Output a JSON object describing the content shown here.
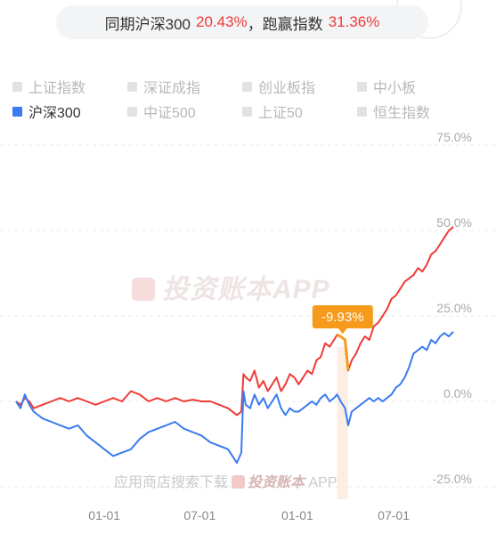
{
  "summary": {
    "prefix": "同期沪深300",
    "index_return": "20.43%",
    "separator": "，跑赢指数",
    "excess_return": "31.36%"
  },
  "legend": [
    {
      "label": "上证指数",
      "active": false
    },
    {
      "label": "深证成指",
      "active": false
    },
    {
      "label": "创业板指",
      "active": false
    },
    {
      "label": "中小板",
      "active": false
    },
    {
      "label": "沪深300",
      "active": true
    },
    {
      "label": "中证500",
      "active": false
    },
    {
      "label": "上证50",
      "active": false
    },
    {
      "label": "恒生指数",
      "active": false
    }
  ],
  "watermark": {
    "main": "投资账本APP",
    "footer_prefix": "应用商店搜索下载",
    "footer_brand": "投资账本",
    "footer_suffix": "APP"
  },
  "colors": {
    "portfolio": "#ef3b36",
    "index": "#3a7bf0",
    "drawdown": "#f59a1b"
  },
  "chart_data": {
    "type": "line",
    "y_unit": "%",
    "ylim": [
      -25,
      75
    ],
    "yticks": [
      75,
      50,
      25,
      0,
      -25
    ],
    "ytick_labels": [
      "75.0%",
      "50.0%",
      "25.0%",
      "0.0%",
      "-25.0%"
    ],
    "xticks": [
      {
        "label": "01-01",
        "pos": 0.2
      },
      {
        "label": "07-01",
        "pos": 0.416
      },
      {
        "label": "01-01",
        "pos": 0.637
      },
      {
        "label": "07-01",
        "pos": 0.855
      }
    ],
    "grid": true,
    "drawdown_label": "-9.93%",
    "drawdown_range": [
      0.727,
      0.752
    ],
    "series": [
      {
        "name": "",
        "color": "#ef3b36",
        "points": [
          [
            0,
            0
          ],
          [
            0.01,
            -1
          ],
          [
            0.02,
            1
          ],
          [
            0.03,
            0
          ],
          [
            0.04,
            -2
          ],
          [
            0.06,
            -1
          ],
          [
            0.08,
            0
          ],
          [
            0.1,
            1
          ],
          [
            0.12,
            0
          ],
          [
            0.14,
            1
          ],
          [
            0.16,
            0
          ],
          [
            0.18,
            -1
          ],
          [
            0.2,
            0
          ],
          [
            0.22,
            1
          ],
          [
            0.24,
            0
          ],
          [
            0.26,
            3
          ],
          [
            0.28,
            2
          ],
          [
            0.3,
            0
          ],
          [
            0.32,
            1
          ],
          [
            0.34,
            0
          ],
          [
            0.36,
            1
          ],
          [
            0.38,
            0
          ],
          [
            0.4,
            0.5
          ],
          [
            0.42,
            0
          ],
          [
            0.44,
            0
          ],
          [
            0.46,
            -1
          ],
          [
            0.48,
            -2
          ],
          [
            0.5,
            -4
          ],
          [
            0.51,
            -3
          ],
          [
            0.515,
            8
          ],
          [
            0.52,
            7
          ],
          [
            0.53,
            6
          ],
          [
            0.54,
            9
          ],
          [
            0.55,
            4
          ],
          [
            0.56,
            6
          ],
          [
            0.57,
            3
          ],
          [
            0.58,
            5
          ],
          [
            0.59,
            7
          ],
          [
            0.6,
            3
          ],
          [
            0.61,
            5
          ],
          [
            0.62,
            8
          ],
          [
            0.63,
            7
          ],
          [
            0.64,
            5
          ],
          [
            0.65,
            7
          ],
          [
            0.66,
            9
          ],
          [
            0.67,
            8
          ],
          [
            0.68,
            12
          ],
          [
            0.69,
            13
          ],
          [
            0.7,
            17
          ],
          [
            0.71,
            16
          ],
          [
            0.72,
            18
          ],
          [
            0.727,
            19.5
          ],
          [
            0.735,
            19
          ],
          [
            0.745,
            18
          ],
          [
            0.752,
            9
          ],
          [
            0.76,
            12
          ],
          [
            0.77,
            14
          ],
          [
            0.78,
            17
          ],
          [
            0.79,
            19
          ],
          [
            0.8,
            18
          ],
          [
            0.81,
            22
          ],
          [
            0.82,
            23
          ],
          [
            0.83,
            25
          ],
          [
            0.84,
            27
          ],
          [
            0.85,
            30
          ],
          [
            0.86,
            31
          ],
          [
            0.87,
            33
          ],
          [
            0.88,
            35
          ],
          [
            0.89,
            36
          ],
          [
            0.9,
            37
          ],
          [
            0.91,
            39
          ],
          [
            0.92,
            38
          ],
          [
            0.93,
            40
          ],
          [
            0.94,
            43
          ],
          [
            0.95,
            44
          ],
          [
            0.96,
            46
          ],
          [
            0.97,
            48
          ],
          [
            0.98,
            50
          ],
          [
            0.99,
            51
          ]
        ]
      },
      {
        "name": "沪深300",
        "color": "#3a7bf0",
        "points": [
          [
            0,
            0
          ],
          [
            0.01,
            -2
          ],
          [
            0.02,
            2
          ],
          [
            0.03,
            -1
          ],
          [
            0.04,
            -3
          ],
          [
            0.06,
            -5
          ],
          [
            0.08,
            -6
          ],
          [
            0.1,
            -7
          ],
          [
            0.12,
            -8
          ],
          [
            0.14,
            -7
          ],
          [
            0.16,
            -10
          ],
          [
            0.18,
            -12
          ],
          [
            0.2,
            -14
          ],
          [
            0.22,
            -16
          ],
          [
            0.24,
            -15
          ],
          [
            0.26,
            -14
          ],
          [
            0.28,
            -11
          ],
          [
            0.3,
            -9
          ],
          [
            0.32,
            -8
          ],
          [
            0.34,
            -7
          ],
          [
            0.36,
            -6
          ],
          [
            0.38,
            -8
          ],
          [
            0.4,
            -9
          ],
          [
            0.42,
            -10
          ],
          [
            0.44,
            -12
          ],
          [
            0.46,
            -13
          ],
          [
            0.48,
            -14
          ],
          [
            0.49,
            -16
          ],
          [
            0.5,
            -18
          ],
          [
            0.51,
            -15
          ],
          [
            0.515,
            3
          ],
          [
            0.52,
            -1
          ],
          [
            0.53,
            -2
          ],
          [
            0.54,
            2
          ],
          [
            0.55,
            -1
          ],
          [
            0.56,
            1
          ],
          [
            0.57,
            -2
          ],
          [
            0.58,
            0
          ],
          [
            0.59,
            2
          ],
          [
            0.6,
            -2
          ],
          [
            0.61,
            -4
          ],
          [
            0.62,
            -2
          ],
          [
            0.63,
            -3
          ],
          [
            0.64,
            -3
          ],
          [
            0.65,
            -2
          ],
          [
            0.66,
            -1
          ],
          [
            0.67,
            0
          ],
          [
            0.68,
            -1
          ],
          [
            0.69,
            1
          ],
          [
            0.7,
            2
          ],
          [
            0.71,
            0
          ],
          [
            0.72,
            1
          ],
          [
            0.727,
            2
          ],
          [
            0.735,
            0
          ],
          [
            0.745,
            -2
          ],
          [
            0.752,
            -7
          ],
          [
            0.76,
            -3
          ],
          [
            0.77,
            -2
          ],
          [
            0.78,
            -1
          ],
          [
            0.79,
            0
          ],
          [
            0.8,
            1
          ],
          [
            0.81,
            0
          ],
          [
            0.82,
            1
          ],
          [
            0.83,
            0
          ],
          [
            0.84,
            1
          ],
          [
            0.85,
            2
          ],
          [
            0.86,
            4
          ],
          [
            0.87,
            5
          ],
          [
            0.88,
            7
          ],
          [
            0.89,
            10
          ],
          [
            0.9,
            14
          ],
          [
            0.91,
            15
          ],
          [
            0.92,
            16
          ],
          [
            0.93,
            15
          ],
          [
            0.94,
            18
          ],
          [
            0.95,
            17
          ],
          [
            0.96,
            19
          ],
          [
            0.97,
            20
          ],
          [
            0.98,
            19
          ],
          [
            0.99,
            20.4
          ]
        ]
      }
    ]
  }
}
